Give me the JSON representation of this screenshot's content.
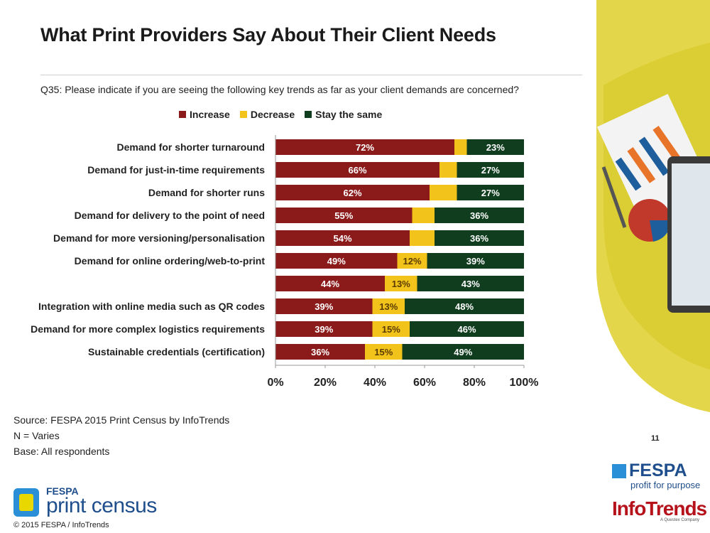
{
  "title": "What Print Providers Say About Their Client Needs",
  "question": "Q35: Please indicate if you are seeing the following key trends as far as your client demands are concerned?",
  "legend": [
    {
      "label": "Increase",
      "color": "#8b1a1a"
    },
    {
      "label": "Decrease",
      "color": "#f2c31a"
    },
    {
      "label": "Stay the same",
      "color": "#0f3d1e"
    }
  ],
  "source": {
    "line1": "Source: FESPA 2015 Print Census by InfoTrends",
    "line2": "N = Varies",
    "line3": "Base: All respondents"
  },
  "page_number": "11",
  "copyright": "© 2015 FESPA  / InfoTrends",
  "logos": {
    "fespa": "FESPA",
    "fespa_tagline": "profit for purpose",
    "infotrends": "InfoTrends",
    "infotrends_sub": "A Questex Company",
    "census_top": "FESPA",
    "census_main": "print census"
  },
  "chart_data": {
    "type": "bar",
    "orientation": "horizontal",
    "stacked": true,
    "categories": [
      "Demand for shorter turnaround",
      "Demand for just-in-time requirements",
      "Demand for shorter runs",
      "Demand for delivery to the point of need",
      "Demand for more versioning/personalisation",
      "Demand for online ordering/web-to-print",
      "",
      "Integration with online media such as QR codes",
      "Demand for more complex logistics requirements",
      "Sustainable credentials (certification)"
    ],
    "series": [
      {
        "name": "Increase",
        "color": "#8b1a1a",
        "values": [
          72,
          66,
          62,
          55,
          54,
          49,
          44,
          39,
          39,
          36
        ],
        "labels": [
          "72%",
          "66%",
          "62%",
          "55%",
          "54%",
          "49%",
          "44%",
          "39%",
          "39%",
          "36%"
        ]
      },
      {
        "name": "Decrease",
        "color": "#f2c31a",
        "values": [
          5,
          7,
          11,
          9,
          10,
          12,
          13,
          13,
          15,
          15
        ],
        "labels": [
          "",
          "",
          "",
          "",
          "",
          "12%",
          "13%",
          "13%",
          "15%",
          "15%"
        ]
      },
      {
        "name": "Stay the same",
        "color": "#0f3d1e",
        "values": [
          23,
          27,
          27,
          36,
          36,
          39,
          43,
          48,
          46,
          49
        ],
        "labels": [
          "23%",
          "27%",
          "27%",
          "36%",
          "36%",
          "39%",
          "43%",
          "48%",
          "46%",
          "49%"
        ]
      }
    ],
    "xlim": [
      0,
      100
    ],
    "xticks": [
      "0%",
      "20%",
      "40%",
      "60%",
      "80%",
      "100%"
    ],
    "legend_position": "top",
    "grid": false
  }
}
